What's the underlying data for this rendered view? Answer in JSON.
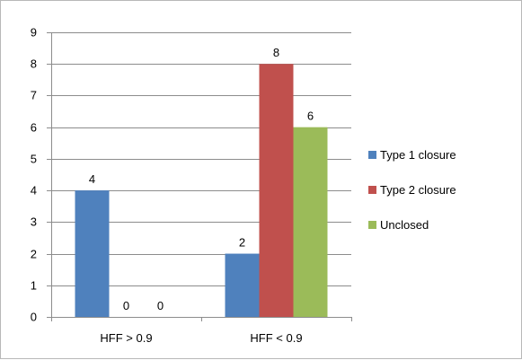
{
  "chart_data": {
    "type": "bar",
    "categories": [
      "HFF > 0.9",
      "HFF < 0.9"
    ],
    "series": [
      {
        "name": "Type 1 closure",
        "values": [
          4,
          2
        ],
        "color": "#4f81bd"
      },
      {
        "name": "Type 2 closure",
        "values": [
          0,
          8
        ],
        "color": "#c0504d"
      },
      {
        "name": "Unclosed",
        "values": [
          0,
          6
        ],
        "color": "#9bbb59"
      }
    ],
    "yticks": [
      "0",
      "1",
      "2",
      "3",
      "4",
      "5",
      "6",
      "7",
      "8",
      "9"
    ],
    "ylim": [
      0,
      9
    ],
    "grid": true,
    "data_labels": true,
    "legend_position": "right"
  }
}
